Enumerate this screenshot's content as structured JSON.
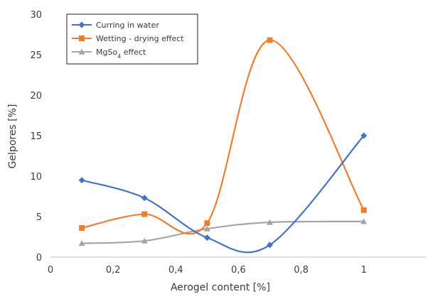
{
  "chart_data": {
    "type": "line",
    "smooth": true,
    "xlabel": "Aerogel content [%]",
    "ylabel": "Gelpores [%]",
    "xlim": [
      0,
      1.2
    ],
    "ylim": [
      0,
      30
    ],
    "x_ticks": [
      "0",
      "0,2",
      "0,4",
      "0,6",
      "0,8",
      "1"
    ],
    "y_ticks": [
      "0",
      "5",
      "10",
      "15",
      "20",
      "25",
      "30"
    ],
    "grid": false,
    "legend_position": "top-left",
    "series": [
      {
        "name": "Curring in water",
        "color": "#4472c4",
        "marker": "diamond",
        "x": [
          0.1,
          0.3,
          0.5,
          0.7,
          1.0
        ],
        "values": [
          9.5,
          7.3,
          2.4,
          1.5,
          15.0
        ]
      },
      {
        "name": "Wetting - drying effect",
        "color": "#ed7d31",
        "marker": "square",
        "x": [
          0.1,
          0.3,
          0.5,
          0.7,
          1.0
        ],
        "values": [
          3.6,
          5.3,
          4.2,
          26.8,
          5.8
        ]
      },
      {
        "name": "MgSo",
        "name_subscript": "4",
        "name_suffix": " effect",
        "color": "#a5a5a5",
        "marker": "triangle",
        "x": [
          0.1,
          0.3,
          0.5,
          0.7,
          1.0
        ],
        "values": [
          1.7,
          2.0,
          3.5,
          4.3,
          4.4
        ]
      }
    ]
  }
}
